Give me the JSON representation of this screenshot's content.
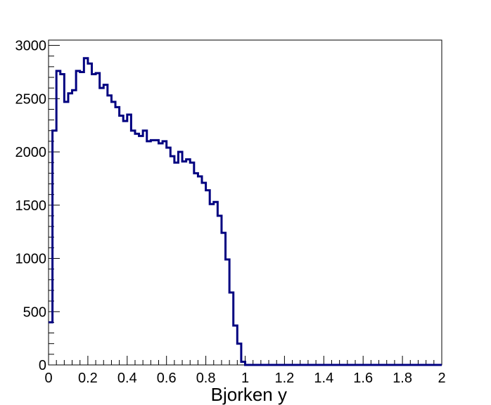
{
  "chart_data": {
    "type": "histogram",
    "xlabel": "Bjorken y",
    "ylabel": "",
    "xlim": [
      0,
      2
    ],
    "ylim": [
      0,
      3050
    ],
    "bin_width": 0.02,
    "bin_start": 0,
    "x_ticks": [
      "0",
      "0.2",
      "0.4",
      "0.6",
      "0.8",
      "1",
      "1.2",
      "1.4",
      "1.6",
      "1.8",
      "2"
    ],
    "y_ticks": [
      "0",
      "500",
      "1000",
      "1500",
      "2000",
      "2500",
      "3000"
    ],
    "line_color": "#000080",
    "values": [
      400,
      2200,
      2760,
      2730,
      2470,
      2550,
      2580,
      2760,
      2750,
      2880,
      2830,
      2730,
      2740,
      2600,
      2630,
      2530,
      2470,
      2420,
      2340,
      2290,
      2350,
      2200,
      2170,
      2150,
      2200,
      2100,
      2110,
      2110,
      2080,
      2100,
      2040,
      1960,
      1900,
      2000,
      1910,
      1930,
      1900,
      1800,
      1770,
      1710,
      1640,
      1510,
      1530,
      1400,
      1240,
      990,
      680,
      370,
      200,
      30,
      0,
      0,
      0,
      0,
      0,
      0,
      0,
      0,
      0,
      0,
      0,
      0,
      0,
      0,
      0,
      0,
      0,
      0,
      0,
      0,
      0,
      0,
      0,
      0,
      0,
      0,
      0,
      0,
      0,
      0,
      0,
      0,
      0,
      0,
      0,
      0,
      0,
      0,
      0,
      0,
      0,
      0,
      0,
      0,
      0,
      0,
      0,
      0,
      0,
      0
    ]
  }
}
